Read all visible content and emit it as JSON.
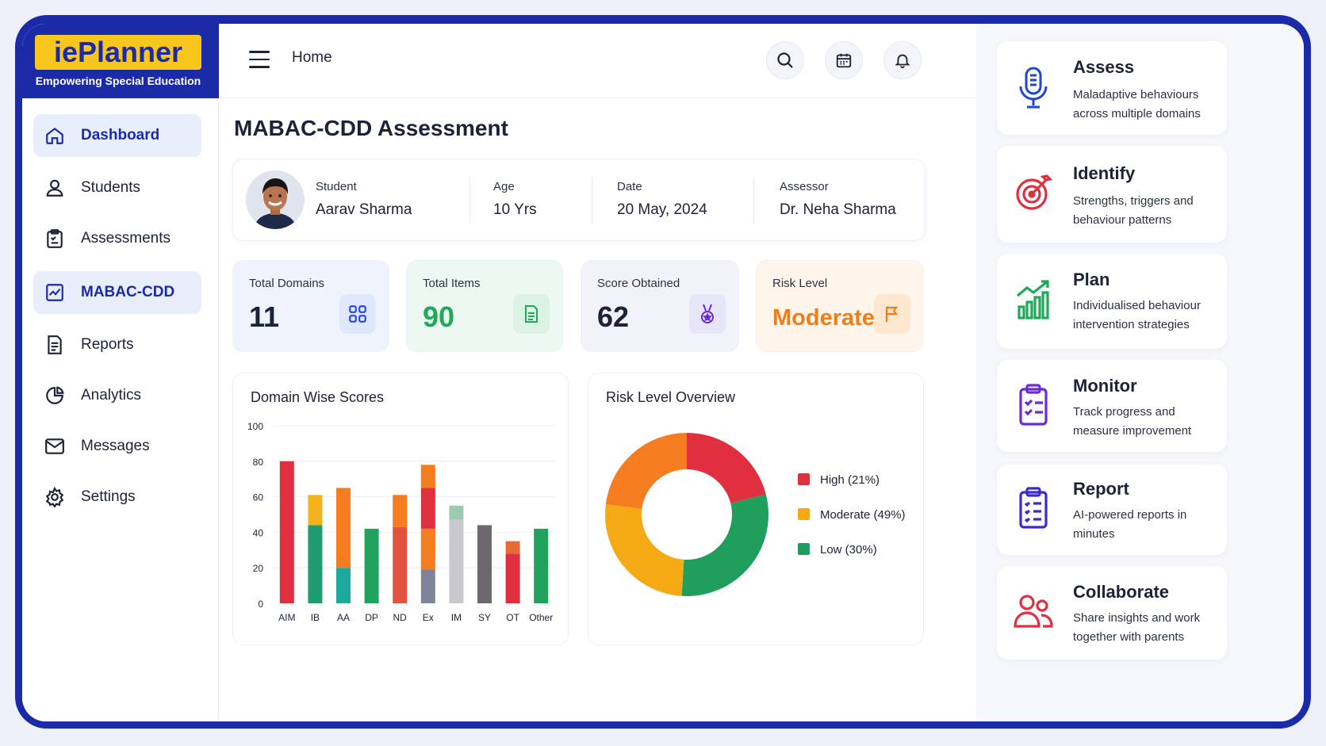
{
  "brand": {
    "name": "iePlanner",
    "tagline": "Empowering Special Education"
  },
  "sidebar": {
    "items": [
      {
        "label": "Dashboard",
        "icon": "home-icon",
        "active": true
      },
      {
        "label": "Students",
        "icon": "user-icon",
        "active": false
      },
      {
        "label": "Assessments",
        "icon": "clipboard-icon",
        "active": false
      },
      {
        "label": "MABAC-CDD",
        "icon": "chart-box-icon",
        "active": true
      },
      {
        "label": "Reports",
        "icon": "document-icon",
        "active": false
      },
      {
        "label": "Analytics",
        "icon": "pie-icon",
        "active": false
      },
      {
        "label": "Messages",
        "icon": "mail-icon",
        "active": false
      },
      {
        "label": "Settings",
        "icon": "gear-icon",
        "active": false
      }
    ]
  },
  "topbar": {
    "breadcrumb": "Home"
  },
  "main": {
    "title": "MABAC-CDD Assessment",
    "student": {
      "student_label": "Student",
      "student_value": "Aarav Sharma",
      "age_label": "Age",
      "age_value": "10 Yrs",
      "date_label": "Date",
      "date_value": "20 May, 2024",
      "assessor_label": "Assessor",
      "assessor_value": "Dr. Neha Sharma"
    },
    "stats": [
      {
        "label": "Total Domains",
        "value": "11",
        "color": "#1c2237",
        "bg": "#eef3fc"
      },
      {
        "label": "Total Items",
        "value": "90",
        "color": "#1faa5a",
        "bg": "#eef8f2"
      },
      {
        "label": "Score Obtained",
        "value": "62",
        "color": "#1c2237",
        "bg": "#f2f3fa"
      },
      {
        "label": "Risk Level",
        "value": "Moderate",
        "color": "#f07d1a",
        "bg": "#fff5ea"
      }
    ],
    "bar_panel_title": "Domain Wise Scores",
    "donut_panel_title": "Risk Level Overview"
  },
  "chart_data": [
    {
      "type": "bar",
      "title": "Domain Wise Scores",
      "categories": [
        "AIM",
        "IB",
        "AA",
        "DP",
        "ND",
        "Ex",
        "IM",
        "SY",
        "OT",
        "Other"
      ],
      "ylim": [
        0,
        100
      ],
      "yticks": [
        0,
        20,
        40,
        60,
        80,
        100
      ],
      "segments": [
        [
          {
            "from": 0,
            "to": 80,
            "color": "#e0303f"
          }
        ],
        [
          {
            "from": 0,
            "to": 44,
            "color": "#1f9c72"
          },
          {
            "from": 44,
            "to": 61,
            "color": "#f5b21d"
          }
        ],
        [
          {
            "from": 0,
            "to": 20,
            "color": "#1ea99d"
          },
          {
            "from": 20,
            "to": 65,
            "color": "#f57c1f"
          }
        ],
        [
          {
            "from": 0,
            "to": 42,
            "color": "#21a35e"
          }
        ],
        [
          {
            "from": 0,
            "to": 43,
            "color": "#e0543f"
          },
          {
            "from": 43,
            "to": 61,
            "color": "#f57c1f"
          }
        ],
        [
          {
            "from": 0,
            "to": 19,
            "color": "#7d8499"
          },
          {
            "from": 19,
            "to": 42,
            "color": "#f57c1f"
          },
          {
            "from": 42,
            "to": 65,
            "color": "#e0303f"
          },
          {
            "from": 65,
            "to": 78,
            "color": "#f57c1f"
          }
        ],
        [
          {
            "from": 0,
            "to": 47,
            "color": "#c7c8cc"
          },
          {
            "from": 47,
            "to": 55,
            "color": "#9fc8b0"
          }
        ],
        [
          {
            "from": 0,
            "to": 44,
            "color": "#6e6770"
          }
        ],
        [
          {
            "from": 0,
            "to": 28,
            "color": "#e0303f"
          },
          {
            "from": 28,
            "to": 35,
            "color": "#e8693a"
          }
        ],
        [
          {
            "from": 0,
            "to": 42,
            "color": "#21a35e"
          }
        ]
      ],
      "grid": true
    },
    {
      "type": "pie",
      "title": "Risk Level Overview",
      "donut": true,
      "slices": [
        {
          "label": "High (21%)",
          "value": 21,
          "color": "#e0303f"
        },
        {
          "label": "Low (30%)",
          "value": 30,
          "color": "#1f9e5c"
        },
        {
          "label": "Moderate (49%)",
          "value": 49,
          "color": "#f5a915",
          "split_color": "#f57c1f",
          "split_value": 23
        }
      ],
      "legend": [
        "High (21%)",
        "Moderate (49%)",
        "Low (30%)"
      ],
      "legend_colors": [
        "#e0303f",
        "#f5a915",
        "#1f9e5c"
      ],
      "legend_position": "right"
    }
  ],
  "features": [
    {
      "title": "Assess",
      "desc": "Maladaptive behaviours across multiple domains",
      "icon": "microphone-icon",
      "color": "#1f47d6"
    },
    {
      "title": "Identify",
      "desc": "Strengths, triggers and behaviour patterns",
      "icon": "target-icon",
      "color": "#e0303f"
    },
    {
      "title": "Plan",
      "desc": "Individualised behaviour intervention strategies",
      "icon": "growth-chart-icon",
      "color": "#1faa5a"
    },
    {
      "title": "Monitor",
      "desc": "Track progress and measure improvement",
      "icon": "checklist-icon",
      "color": "#6a2bd8"
    },
    {
      "title": "Report",
      "desc": "AI-powered reports in minutes",
      "icon": "report-icon",
      "color": "#3a2bd0"
    },
    {
      "title": "Collaborate",
      "desc": "Share insights and work together with parents",
      "icon": "people-icon",
      "color": "#e0303f"
    }
  ]
}
